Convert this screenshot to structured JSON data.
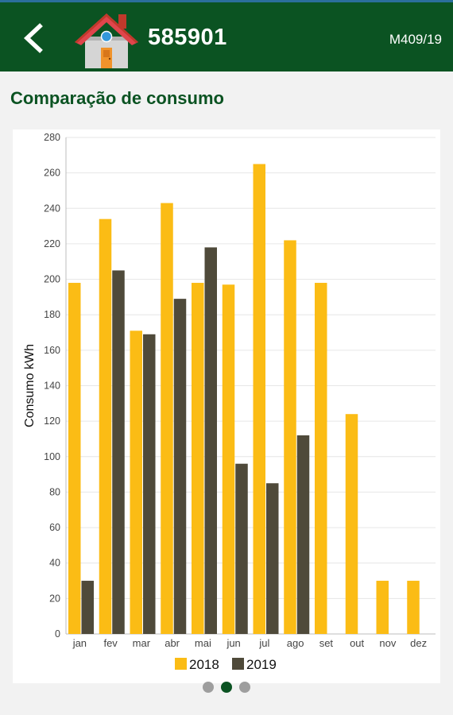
{
  "header": {
    "account_number": "585901",
    "account_ref": "M409/19",
    "icons": {
      "back": "back-arrow-icon",
      "home": "house-icon"
    }
  },
  "section": {
    "title": "Comparação de consumo"
  },
  "colors": {
    "header_bg": "#0b5322",
    "series_2018": "#fbbc15",
    "series_2019": "#4f4a3a",
    "pager_active": "#0b5322",
    "pager_inactive": "#9e9e9e"
  },
  "chart_data": {
    "type": "bar",
    "ylabel": "Consumo kWh",
    "xlabel": "",
    "ylim": [
      0,
      280
    ],
    "yticks": [
      0,
      20,
      40,
      60,
      80,
      100,
      120,
      140,
      160,
      180,
      200,
      220,
      240,
      260,
      280
    ],
    "categories": [
      "jan",
      "fev",
      "mar",
      "abr",
      "mai",
      "jun",
      "jul",
      "ago",
      "set",
      "out",
      "nov",
      "dez"
    ],
    "series": [
      {
        "name": "2018",
        "values": [
          198,
          234,
          171,
          243,
          198,
          197,
          265,
          222,
          198,
          124,
          30,
          30
        ]
      },
      {
        "name": "2019",
        "values": [
          30,
          205,
          169,
          189,
          218,
          96,
          85,
          112,
          null,
          null,
          null,
          null
        ]
      }
    ],
    "grid": true,
    "legend": "bottom-center"
  },
  "pager": {
    "count": 3,
    "active_index": 1
  }
}
